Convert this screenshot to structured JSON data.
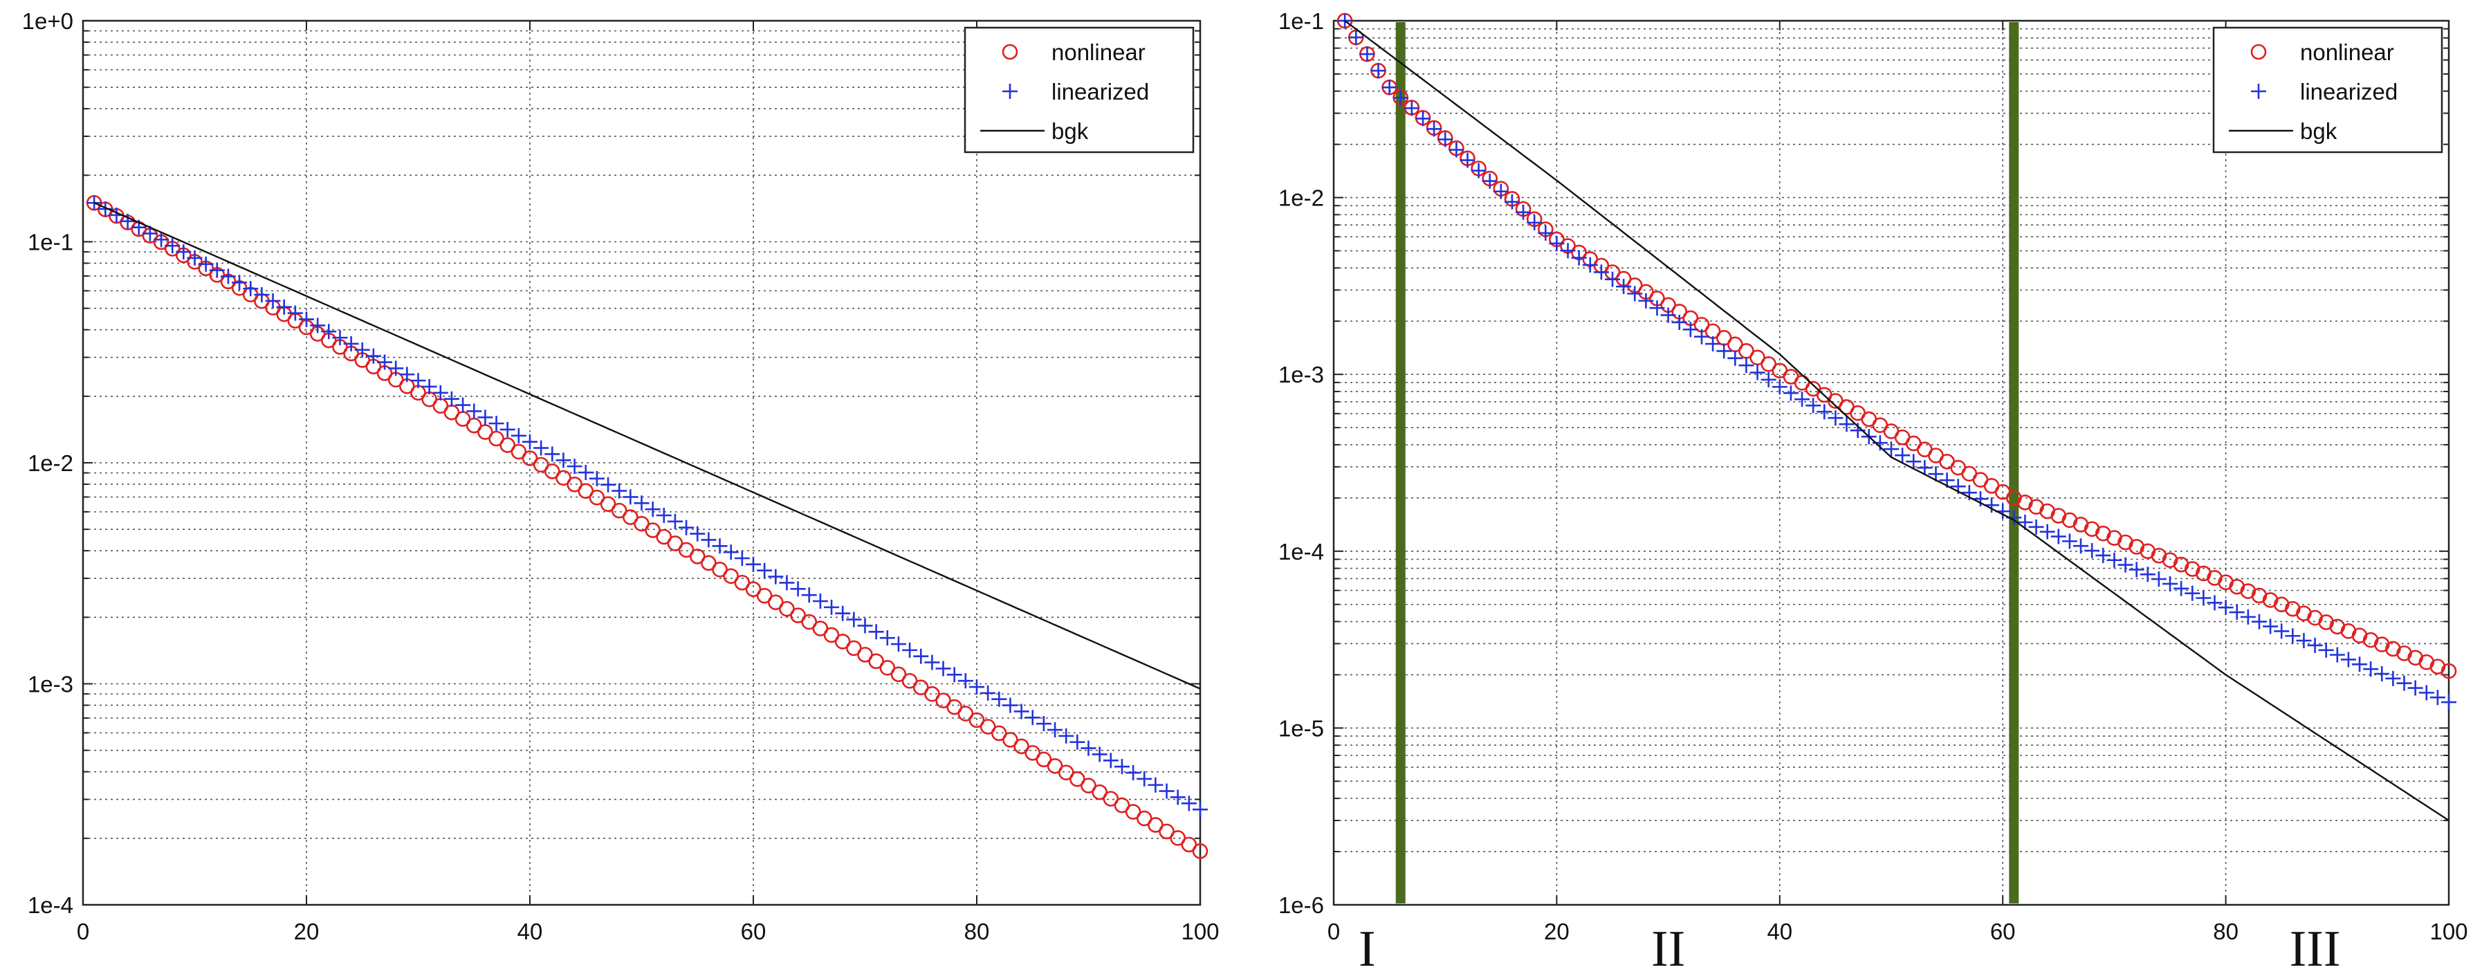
{
  "chart_data": [
    {
      "type": "scatter",
      "title": "",
      "xlabel": "",
      "ylabel": "",
      "xlim": [
        0,
        100
      ],
      "ylim": [
        0.0001,
        1
      ],
      "yscale": "log",
      "grid": true,
      "legend_position": "top-right",
      "xticks": [
        "0",
        "20",
        "40",
        "60",
        "80",
        "100"
      ],
      "yticks": [
        "1e-4",
        "1e-3",
        "1e-2",
        "1e-1",
        "1e+0"
      ],
      "series": [
        {
          "name": "nonlinear",
          "marker": "circle",
          "color": "#e02020",
          "x_range": [
            1,
            100
          ],
          "x_step": 1,
          "y_start": 0.15,
          "y_end": 0.000175
        },
        {
          "name": "linearized",
          "marker": "plus",
          "color": "#2233dd",
          "x_range": [
            1,
            100
          ],
          "x_step": 1,
          "y_start": 0.15,
          "y_end": 0.00027
        },
        {
          "name": "bgk",
          "marker": "line",
          "color": "#111111",
          "x_range": [
            1,
            100
          ],
          "y_start": 0.15,
          "y_end": 0.00095
        }
      ]
    },
    {
      "type": "scatter",
      "title": "",
      "xlabel": "",
      "ylabel": "",
      "xlim": [
        0,
        100
      ],
      "ylim": [
        1e-06,
        0.1
      ],
      "yscale": "log",
      "grid": true,
      "legend_position": "top-right",
      "xticks": [
        "0",
        "20",
        "40",
        "60",
        "80",
        "100"
      ],
      "yticks": [
        "1e-6",
        "1e-5",
        "1e-4",
        "1e-3",
        "1e-2",
        "1e-1"
      ],
      "series": [
        {
          "name": "nonlinear",
          "marker": "circle",
          "color": "#e02020",
          "x_range": [
            1,
            100
          ],
          "x_step": 1,
          "points": [
            [
              1,
              0.1
            ],
            [
              5,
              0.042
            ],
            [
              20,
              0.0058
            ],
            [
              40,
              0.00105
            ],
            [
              61,
              0.0002
            ],
            [
              100,
              2.1e-05
            ]
          ]
        },
        {
          "name": "linearized",
          "marker": "plus",
          "color": "#2233dd",
          "x_range": [
            1,
            100
          ],
          "x_step": 1,
          "points": [
            [
              1,
              0.1
            ],
            [
              5,
              0.042
            ],
            [
              20,
              0.0055
            ],
            [
              40,
              0.00085
            ],
            [
              61,
              0.000155
            ],
            [
              100,
              1.4e-05
            ]
          ]
        },
        {
          "name": "bgk",
          "marker": "line",
          "color": "#111111",
          "points": [
            [
              1,
              0.1
            ],
            [
              20,
              0.0125
            ],
            [
              40,
              0.0013
            ],
            [
              50,
              0.00034
            ],
            [
              61,
              0.00015
            ],
            [
              80,
              2e-05
            ],
            [
              100,
              3e-06
            ]
          ]
        }
      ],
      "vertical_lines": [
        {
          "x": 6,
          "color": "#4a6b1e"
        },
        {
          "x": 61,
          "color": "#4a6b1e"
        }
      ],
      "region_labels": [
        {
          "text": "I",
          "x": 3
        },
        {
          "text": "II",
          "x": 30
        },
        {
          "text": "III",
          "x": 88
        }
      ]
    }
  ]
}
